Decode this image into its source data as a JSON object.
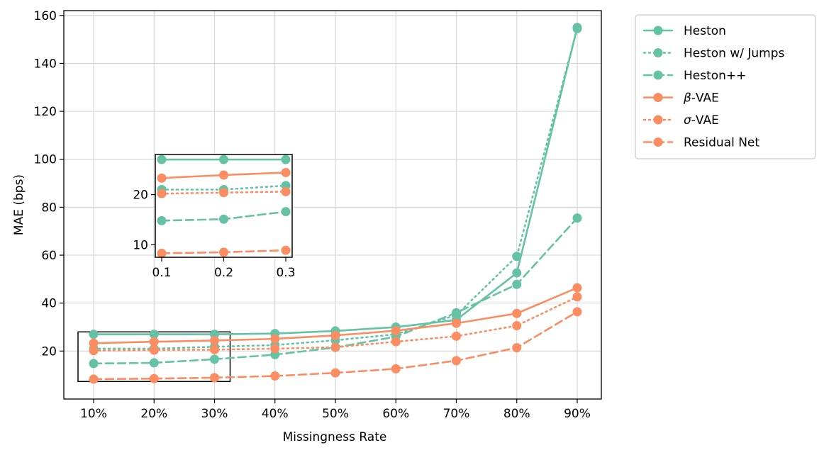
{
  "chart_data": {
    "type": "line",
    "xlabel": "Missingness Rate",
    "ylabel": "MAE (bps)",
    "categories": [
      "10%",
      "20%",
      "30%",
      "40%",
      "50%",
      "60%",
      "70%",
      "80%",
      "90%"
    ],
    "ylim": [
      0,
      162
    ],
    "yticks": [
      "20",
      "40",
      "60",
      "80",
      "100",
      "120",
      "140",
      "160"
    ],
    "grid": true,
    "legend_position": "outside-right",
    "series": [
      {
        "name": "Heston",
        "color": "#66c2a5",
        "style": "solid",
        "values": [
          27,
          27,
          27,
          27.3,
          28.4,
          30,
          33,
          52.6,
          155
        ]
      },
      {
        "name": "Heston w/ Jumps",
        "color": "#66c2a5",
        "style": "dotted",
        "values": [
          21,
          21,
          21.8,
          22.5,
          24.5,
          27,
          35,
          59.5,
          154.5
        ]
      },
      {
        "name": "Heston++",
        "color": "#66c2a5",
        "style": "dashed",
        "values": [
          14.8,
          15.1,
          16.6,
          18.5,
          21.5,
          26,
          36,
          47.8,
          75.5
        ]
      },
      {
        "name": "β-VAE",
        "color": "#fc8d62",
        "style": "solid",
        "values": [
          23.3,
          23.9,
          24.4,
          25.1,
          26.5,
          28.5,
          31.6,
          35.7,
          46.4
        ]
      },
      {
        "name": "σ-VAE",
        "color": "#fc8d62",
        "style": "dotted",
        "values": [
          20.2,
          20.4,
          20.6,
          21,
          21.6,
          23.9,
          26.2,
          30.6,
          42.6
        ]
      },
      {
        "name": "Residual Net",
        "color": "#fc8d62",
        "style": "dashed",
        "values": [
          8.3,
          8.5,
          8.9,
          9.6,
          10.9,
          12.6,
          16,
          21.4,
          36.4
        ]
      }
    ],
    "inset": {
      "x": [
        0.1,
        0.2,
        0.3
      ],
      "xticks": [
        "0.1",
        "0.2",
        "0.3"
      ],
      "yticks": [
        "10",
        "20"
      ],
      "ylim": [
        7.5,
        28
      ]
    }
  }
}
